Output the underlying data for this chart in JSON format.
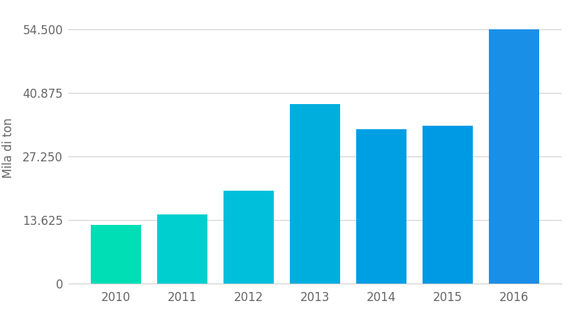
{
  "categories": [
    "2010",
    "2011",
    "2012",
    "2013",
    "2014",
    "2015",
    "2016"
  ],
  "values": [
    12.5,
    14.8,
    19.8,
    38.5,
    33.0,
    33.8,
    54.5
  ],
  "bar_colors": [
    "#00DEB5",
    "#00CFCF",
    "#00BFDA",
    "#00AEDE",
    "#009EE2",
    "#009AE4",
    "#1A8FE8"
  ],
  "ylabel": "Mila di ton",
  "yticks": [
    0,
    13.625,
    27.25,
    40.875,
    54.5
  ],
  "ytick_labels": [
    "0",
    "13.625",
    "27.250",
    "40.875",
    "54.500"
  ],
  "ylim": [
    0,
    58
  ],
  "background_color": "#ffffff",
  "grid_color": "#d0d0d0",
  "tick_label_color": "#666666",
  "bar_width": 0.75,
  "figsize": [
    8.2,
    4.61
  ],
  "dpi": 100
}
